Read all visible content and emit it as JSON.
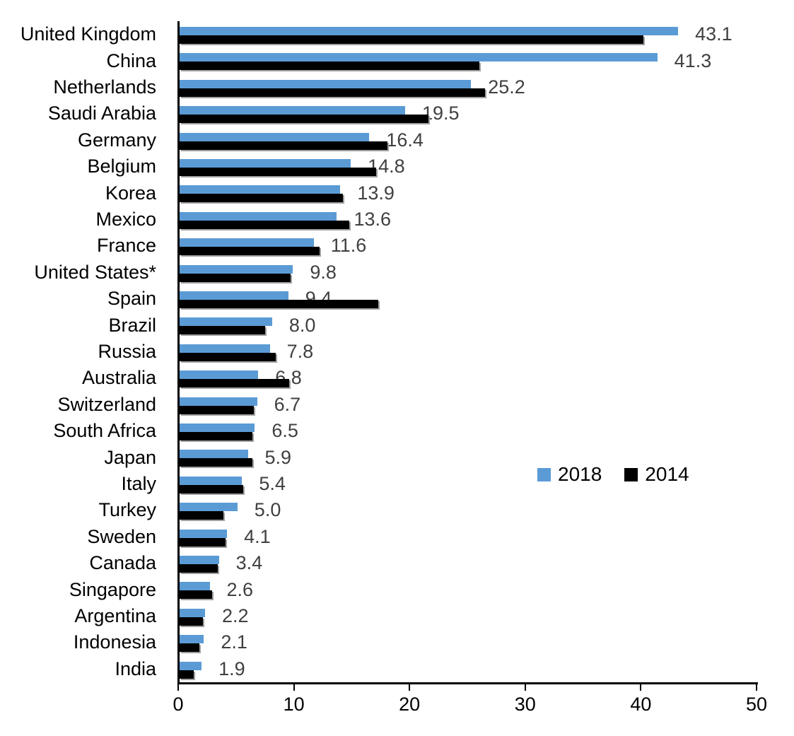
{
  "chart_data": {
    "type": "bar",
    "orientation": "horizontal",
    "title": "",
    "xlabel": "",
    "ylabel": "",
    "xlim": [
      0,
      50
    ],
    "x_ticks": [
      "0",
      "10",
      "20",
      "30",
      "40",
      "50"
    ],
    "grid": "off",
    "legend_position": "center-right",
    "data_labels_series": "2018",
    "categories": [
      "United Kingdom",
      "China",
      "Netherlands",
      "Saudi Arabia",
      "Germany",
      "Belgium",
      "Korea",
      "Mexico",
      "France",
      "United States*",
      "Spain",
      "Brazil",
      "Russia",
      "Australia",
      "Switzerland",
      "South Africa",
      "Japan",
      "Italy",
      "Turkey",
      "Sweden",
      "Canada",
      "Singapore",
      "Argentina",
      "Indonesia",
      "India"
    ],
    "series": [
      {
        "name": "2018",
        "color": "#5B9BD5",
        "values": [
          43.1,
          41.3,
          25.2,
          19.5,
          16.4,
          14.8,
          13.9,
          13.6,
          11.6,
          9.8,
          9.4,
          8.0,
          7.8,
          6.8,
          6.7,
          6.5,
          5.9,
          5.4,
          5.0,
          4.1,
          3.4,
          2.6,
          2.2,
          2.1,
          1.9
        ]
      },
      {
        "name": "2014",
        "color": "#000000",
        "values": [
          40.1,
          25.9,
          26.4,
          21.5,
          18.0,
          17.0,
          14.1,
          14.7,
          12.1,
          9.6,
          17.2,
          7.4,
          8.3,
          9.5,
          6.4,
          6.3,
          6.3,
          5.5,
          3.8,
          4.0,
          3.3,
          2.8,
          2.0,
          1.7,
          1.2
        ]
      }
    ],
    "value_label_color": "#404040"
  }
}
